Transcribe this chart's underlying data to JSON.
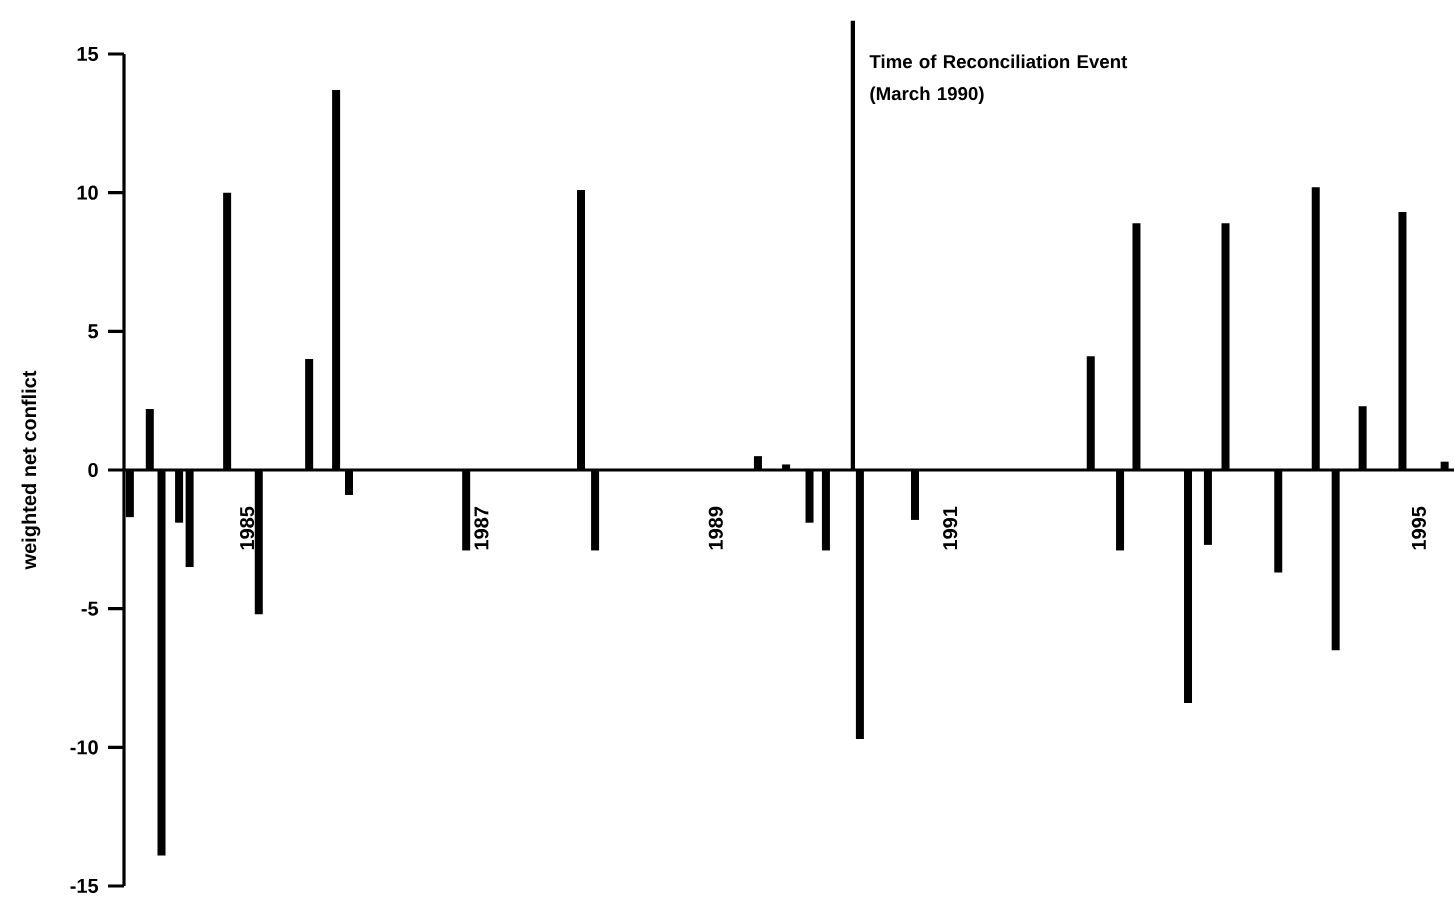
{
  "chart_data": {
    "type": "bar",
    "ylabel": "weighted net conflict",
    "color": "#000000",
    "x": [
      1984.0,
      1984.17,
      1984.27,
      1984.42,
      1984.51,
      1984.83,
      1985.1,
      1985.53,
      1985.76,
      1985.87,
      1986.87,
      1987.85,
      1987.97,
      1989.36,
      1989.6,
      1989.8,
      1989.94,
      1990.23,
      1990.7,
      1992.2,
      1992.45,
      1992.59,
      1993.03,
      1993.2,
      1993.35,
      1993.8,
      1994.12,
      1994.29,
      1994.52,
      1994.86,
      1995.22
    ],
    "values": [
      -1.7,
      2.2,
      -13.9,
      -1.9,
      -3.5,
      10.0,
      -5.2,
      4.0,
      13.7,
      -0.9,
      -2.9,
      10.1,
      -2.9,
      0.5,
      0.2,
      -1.9,
      -2.9,
      -9.7,
      -1.8,
      4.1,
      -2.9,
      8.9,
      -8.4,
      -2.7,
      8.9,
      -3.7,
      10.2,
      -6.5,
      2.3,
      9.3,
      0.3
    ],
    "xlim": [
      1983.95,
      1995.3
    ],
    "ylim": [
      -15,
      15
    ],
    "xticks": [
      1985,
      1987,
      1989,
      1991,
      1995
    ],
    "yticks": [
      -15,
      -10,
      -5,
      0,
      5,
      10,
      15
    ],
    "ref_lines": [
      {
        "axis": "x",
        "value": 1990.17,
        "label": "Time of Reconciliation Event (March 1990)",
        "color": "#000000"
      }
    ],
    "grid": false
  }
}
